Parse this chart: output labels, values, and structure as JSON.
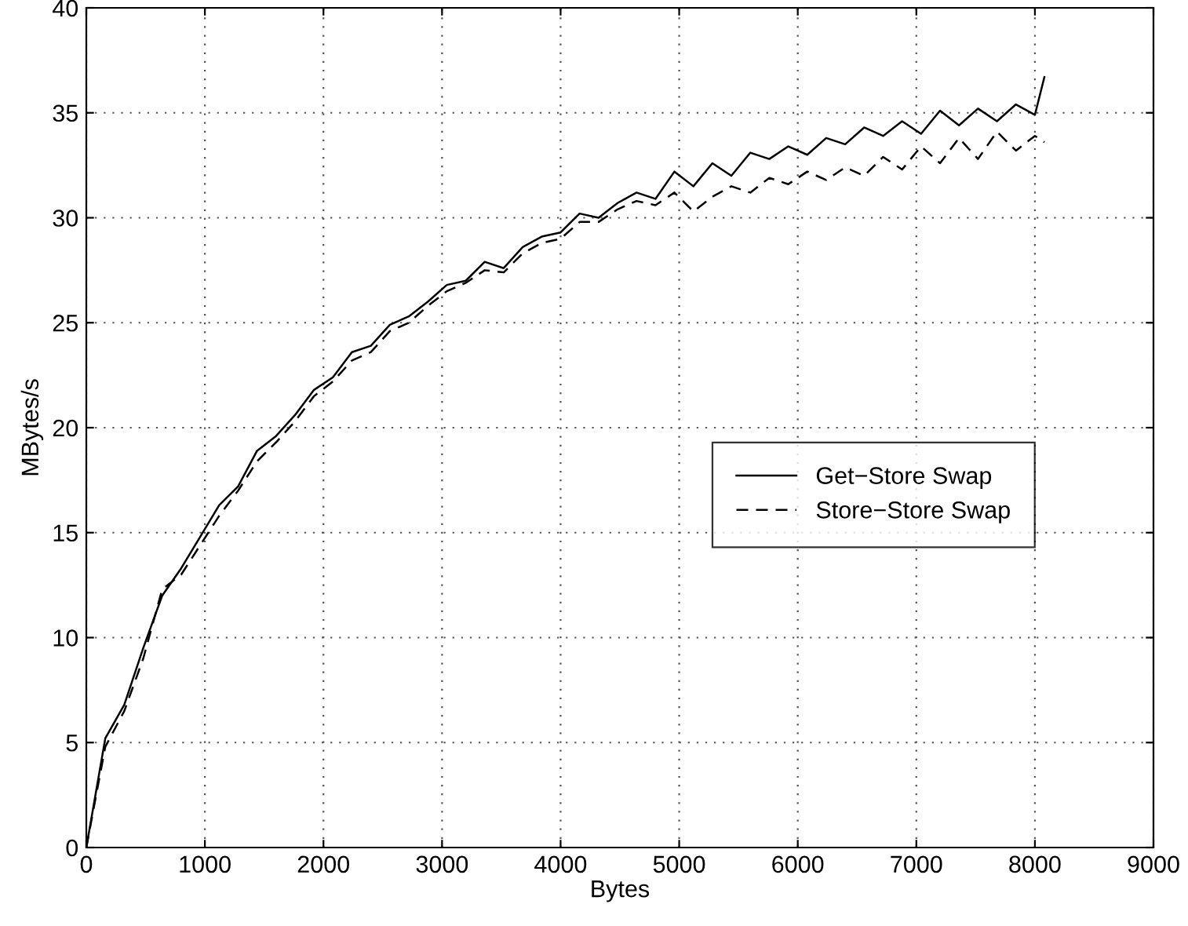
{
  "chart_data": {
    "type": "line",
    "xlabel": "Bytes",
    "ylabel": "MBytes/s",
    "x": [
      0,
      160,
      320,
      480,
      640,
      800,
      960,
      1120,
      1280,
      1440,
      1600,
      1760,
      1920,
      2080,
      2240,
      2400,
      2560,
      2720,
      2880,
      3040,
      3200,
      3360,
      3520,
      3680,
      3840,
      4000,
      4160,
      4320,
      4480,
      4640,
      4800,
      4960,
      5120,
      5280,
      5440,
      5600,
      5760,
      5920,
      6080,
      6240,
      6400,
      6560,
      6720,
      6880,
      7040,
      7200,
      7360,
      7520,
      7680,
      7840,
      8000,
      8080
    ],
    "series": [
      {
        "name": "Get−Store Swap",
        "color": "#000000",
        "line_style": "solid",
        "values": [
          0,
          5.2,
          6.8,
          9.5,
          12.0,
          13.3,
          14.8,
          16.3,
          17.2,
          18.9,
          19.6,
          20.6,
          21.8,
          22.4,
          23.6,
          23.9,
          24.9,
          25.3,
          26.0,
          26.8,
          27.0,
          27.9,
          27.6,
          28.6,
          29.1,
          29.3,
          30.2,
          30.0,
          30.7,
          31.2,
          30.9,
          32.2,
          31.5,
          32.6,
          32.0,
          33.1,
          32.8,
          33.4,
          33.0,
          33.8,
          33.5,
          34.3,
          33.9,
          34.6,
          34.0,
          35.1,
          34.4,
          35.2,
          34.6,
          35.4,
          34.9,
          36.7
        ]
      },
      {
        "name": "Store−Store Swap",
        "color": "#000000",
        "line_style": "dashed",
        "values": [
          0,
          4.8,
          6.5,
          9.0,
          12.3,
          13.0,
          14.4,
          15.8,
          17.0,
          18.4,
          19.3,
          20.3,
          21.5,
          22.2,
          23.2,
          23.6,
          24.6,
          25.0,
          25.8,
          26.5,
          26.9,
          27.5,
          27.4,
          28.3,
          28.8,
          29.0,
          29.8,
          29.8,
          30.4,
          30.8,
          30.6,
          31.2,
          30.3,
          31.0,
          31.5,
          31.2,
          31.9,
          31.6,
          32.2,
          31.8,
          32.4,
          32.0,
          32.9,
          32.3,
          33.4,
          32.6,
          33.8,
          32.8,
          34.1,
          33.2,
          33.9,
          33.6
        ]
      }
    ],
    "xlim": [
      0,
      9000
    ],
    "xticks": [
      0,
      1000,
      2000,
      3000,
      4000,
      5000,
      6000,
      7000,
      8000,
      9000
    ],
    "ylim": [
      0,
      40
    ],
    "yticks": [
      0,
      5,
      10,
      15,
      20,
      25,
      30,
      35,
      40
    ],
    "grid": true,
    "legend": "center right",
    "marker": "none"
  }
}
